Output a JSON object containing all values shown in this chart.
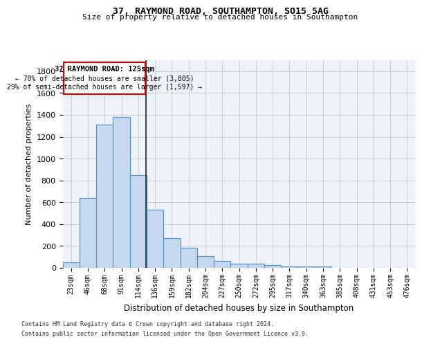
{
  "title1": "37, RAYMOND ROAD, SOUTHAMPTON, SO15 5AG",
  "title2": "Size of property relative to detached houses in Southampton",
  "xlabel": "Distribution of detached houses by size in Southampton",
  "ylabel": "Number of detached properties",
  "bar_values": [
    50,
    640,
    1310,
    1380,
    850,
    530,
    275,
    185,
    105,
    65,
    38,
    35,
    28,
    15,
    15,
    10,
    0,
    0,
    0,
    0,
    0
  ],
  "bar_labels": [
    "23sqm",
    "46sqm",
    "68sqm",
    "91sqm",
    "114sqm",
    "136sqm",
    "159sqm",
    "182sqm",
    "204sqm",
    "227sqm",
    "250sqm",
    "272sqm",
    "295sqm",
    "317sqm",
    "340sqm",
    "363sqm",
    "385sqm",
    "408sqm",
    "431sqm",
    "453sqm",
    "476sqm"
  ],
  "bar_color": "#c5d8f0",
  "bar_edge_color": "#4a90c4",
  "bar_edge_width": 0.8,
  "grid_color": "#cccccc",
  "background_color": "#eef2fa",
  "property_line_x": 4.45,
  "property_line_color": "#222222",
  "annotation_title": "37 RAYMOND ROAD: 125sqm",
  "annotation_line1": "← 70% of detached houses are smaller (3,805)",
  "annotation_line2": "29% of semi-detached houses are larger (1,597) →",
  "annotation_box_color": "#cc0000",
  "ylim": [
    0,
    1900
  ],
  "yticks": [
    0,
    200,
    400,
    600,
    800,
    1000,
    1200,
    1400,
    1600,
    1800
  ],
  "footnote1": "Contains HM Land Registry data © Crown copyright and database right 2024.",
  "footnote2": "Contains public sector information licensed under the Open Government Licence v3.0."
}
